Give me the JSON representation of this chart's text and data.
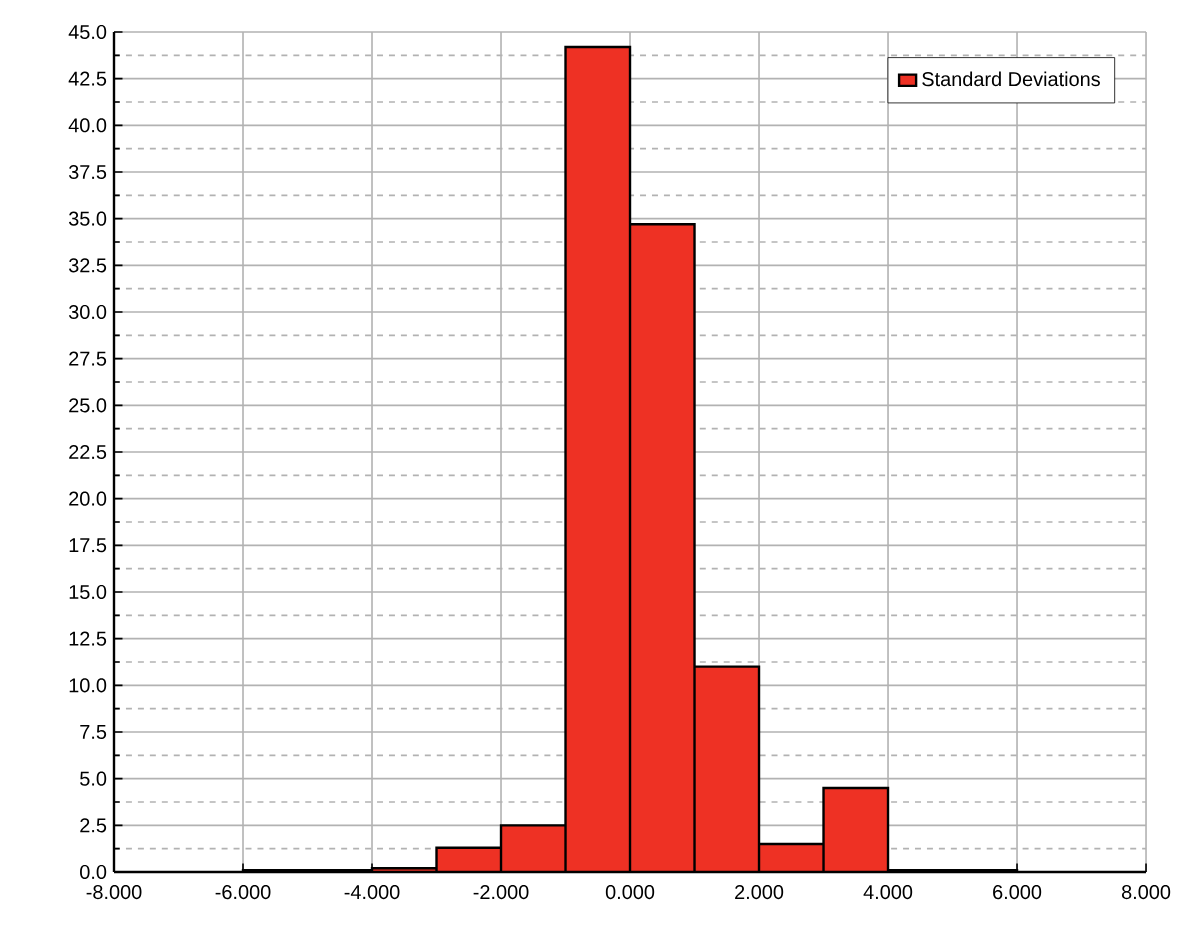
{
  "chart_data": {
    "type": "histogram",
    "bins": [
      -6,
      -4,
      -3,
      -2,
      -1,
      0,
      1,
      2,
      3,
      4,
      6
    ],
    "series": [
      {
        "name": "Standard Deviations",
        "color": "#ee3124",
        "values": [
          0.1,
          0.2,
          1.3,
          2.5,
          44.2,
          34.7,
          11.0,
          1.5,
          4.5,
          0.1
        ]
      }
    ],
    "xlim": [
      -8,
      8
    ],
    "xticks": [
      {
        "value": -8,
        "label": "-8.000"
      },
      {
        "value": -6,
        "label": "-6.000"
      },
      {
        "value": -4,
        "label": "-4.000"
      },
      {
        "value": -2,
        "label": "-2.000"
      },
      {
        "value": 0,
        "label": "0.000"
      },
      {
        "value": 2,
        "label": "2.000"
      },
      {
        "value": 4,
        "label": "4.000"
      },
      {
        "value": 6,
        "label": "6.000"
      },
      {
        "value": 8,
        "label": "8.000"
      }
    ],
    "ylim": [
      0,
      45
    ],
    "yticks": [
      {
        "value": 0,
        "label": "0.0"
      },
      {
        "value": 2.5,
        "label": "2.5"
      },
      {
        "value": 5,
        "label": "5.0"
      },
      {
        "value": 7.5,
        "label": "7.5"
      },
      {
        "value": 10,
        "label": "10.0"
      },
      {
        "value": 12.5,
        "label": "12.5"
      },
      {
        "value": 15,
        "label": "15.0"
      },
      {
        "value": 17.5,
        "label": "17.5"
      },
      {
        "value": 20,
        "label": "20.0"
      },
      {
        "value": 22.5,
        "label": "22.5"
      },
      {
        "value": 25,
        "label": "25.0"
      },
      {
        "value": 27.5,
        "label": "27.5"
      },
      {
        "value": 30,
        "label": "30.0"
      },
      {
        "value": 32.5,
        "label": "32.5"
      },
      {
        "value": 35,
        "label": "35.0"
      },
      {
        "value": 37.5,
        "label": "37.5"
      },
      {
        "value": 40,
        "label": "40.0"
      },
      {
        "value": 42.5,
        "label": "42.5"
      },
      {
        "value": 45,
        "label": "45.0"
      }
    ],
    "grid": true,
    "legend": "top right"
  }
}
